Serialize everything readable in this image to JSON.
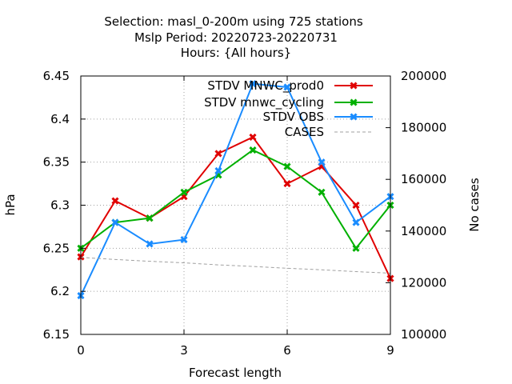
{
  "chart_data": {
    "type": "line",
    "title_lines": [
      "Selection: masl_0-200m using   725 stations",
      "Mslp   Period: 20220723-20220731",
      "Hours: {All hours}"
    ],
    "xlabel": "Forecast length",
    "ylabel": "hPa",
    "y2label": "No cases",
    "xlim": [
      0,
      9
    ],
    "ylim": [
      6.15,
      6.45
    ],
    "y2lim": [
      100000,
      200000
    ],
    "x_ticks": [
      0,
      3,
      6,
      9
    ],
    "y_ticks": [
      "6.15",
      "6.2",
      "6.25",
      "6.3",
      "6.35",
      "6.4",
      "6.45"
    ],
    "y2_ticks": [
      "100000",
      "120000",
      "140000",
      "160000",
      "180000",
      "200000"
    ],
    "grid": true,
    "legend_position": "top-right",
    "series": [
      {
        "name": "STDV MNWC_prod0",
        "color": "#e00000",
        "axis": "y",
        "marker": "x",
        "x": [
          0,
          1,
          2,
          3,
          4,
          5,
          6,
          7,
          8,
          9
        ],
        "y": [
          6.24,
          6.305,
          6.285,
          6.31,
          6.36,
          6.379,
          6.325,
          6.345,
          6.3,
          6.215
        ]
      },
      {
        "name": "STDV mnwc_cycling",
        "color": "#00b000",
        "axis": "y",
        "marker": "x",
        "x": [
          0,
          1,
          2,
          3,
          4,
          5,
          6,
          7,
          8,
          9
        ],
        "y": [
          6.25,
          6.28,
          6.285,
          6.315,
          6.335,
          6.364,
          6.345,
          6.315,
          6.25,
          6.3
        ]
      },
      {
        "name": "STDV OBS",
        "color": "#1a8cff",
        "axis": "y",
        "marker": "x",
        "x": [
          0,
          1,
          2,
          3,
          4,
          5,
          6,
          7,
          8,
          9
        ],
        "y": [
          6.195,
          6.28,
          6.255,
          6.26,
          6.34,
          6.441,
          6.437,
          6.35,
          6.28,
          6.31
        ]
      },
      {
        "name": "CASES",
        "color": "#a0a0a0",
        "axis": "y2",
        "marker": "none",
        "dashed": true,
        "x": [
          0,
          1,
          2,
          3,
          4,
          5,
          6,
          7,
          8,
          9
        ],
        "y": [
          129800,
          129000,
          128300,
          127700,
          126900,
          126300,
          125600,
          125000,
          124300,
          123700
        ]
      }
    ]
  }
}
